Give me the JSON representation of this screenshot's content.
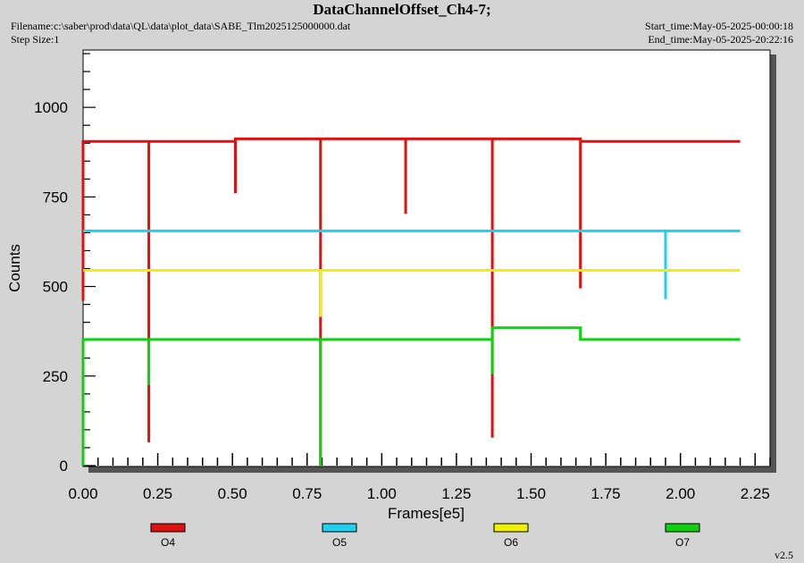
{
  "header": {
    "title": "DataChannelOffset_Ch4-7;",
    "filename": "Filename:c:\\saber\\prod\\data\\QL\\data\\plot_data\\SABE_Tlm2025125000000.dat",
    "step_size": "Step Size:1",
    "start_time": "Start_time:May-05-2025-00:00:18",
    "end_time": "End_time:May-05-2025-20:22:16"
  },
  "footer": {
    "version": "v2.5"
  },
  "colors": {
    "O4": "#e01010",
    "O5": "#20d0f0",
    "O6": "#f0f000",
    "O7": "#10d010"
  },
  "chart_data": {
    "type": "line",
    "xlabel": "Frames[e5]",
    "ylabel": "Counts",
    "xlim": [
      0,
      2.3
    ],
    "ylim": [
      0,
      1160
    ],
    "xticks": [
      "0.00",
      "0.25",
      "0.50",
      "0.75",
      "1.00",
      "1.25",
      "1.50",
      "1.75",
      "2.00",
      "2.25"
    ],
    "yticks": [
      "0",
      "250",
      "500",
      "750",
      "1000"
    ],
    "grid": false,
    "legend_position": "bottom",
    "series": [
      {
        "name": "O4",
        "x": [
          0,
          0,
          0.22,
          0.22,
          0.22,
          0.51,
          0.51,
          0.51,
          0.795,
          0.795,
          0.795,
          1.08,
          1.08,
          1.08,
          1.37,
          1.37,
          1.37,
          1.665,
          1.665,
          1.665,
          2.2
        ],
        "y": [
          460,
          905,
          905,
          65,
          905,
          905,
          760,
          912,
          912,
          0,
          912,
          912,
          703,
          912,
          912,
          78,
          912,
          912,
          495,
          905,
          905
        ]
      },
      {
        "name": "O5",
        "x": [
          0,
          1.95,
          1.95,
          1.95,
          2.2
        ],
        "y": [
          655,
          655,
          465,
          655,
          655
        ]
      },
      {
        "name": "O6",
        "x": [
          0,
          0.795,
          0.795,
          0.795,
          2.2
        ],
        "y": [
          545,
          545,
          415,
          545,
          545
        ]
      },
      {
        "name": "O7",
        "x": [
          0,
          0,
          0.22,
          0.22,
          0.22,
          0.795,
          0.795,
          0.795,
          1.37,
          1.37,
          1.37,
          1.37,
          1.665,
          1.665,
          2.2
        ],
        "y": [
          0,
          352,
          352,
          225,
          352,
          352,
          0,
          352,
          352,
          255,
          352,
          385,
          385,
          352,
          352
        ]
      }
    ]
  }
}
